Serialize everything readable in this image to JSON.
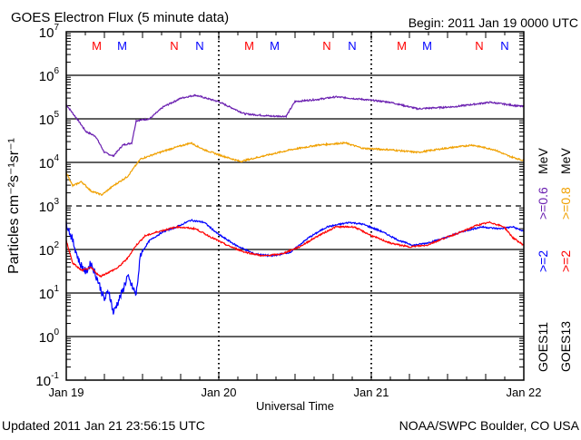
{
  "chart_data": {
    "type": "line",
    "title": "GOES Electron Flux (5 minute data)",
    "begin": "Begin: 2011 Jan 19 0000 UTC",
    "xlabel": "Universal Time",
    "ylabel": "Particles cm⁻²s⁻¹sr⁻¹",
    "yscale": "log",
    "ylim": [
      0.1,
      10000000
    ],
    "xlim_hours": [
      0,
      72
    ],
    "x_ticks": [
      {
        "hour": 0,
        "label": "Jan 19"
      },
      {
        "hour": 24,
        "label": "Jan 20"
      },
      {
        "hour": 48,
        "label": "Jan 21"
      },
      {
        "hour": 72,
        "label": "Jan 22"
      }
    ],
    "y_ticks": [
      {
        "exp": "7"
      },
      {
        "exp": "6"
      },
      {
        "exp": "5"
      },
      {
        "exp": "4"
      },
      {
        "exp": "3"
      },
      {
        "exp": "2"
      },
      {
        "exp": "1"
      },
      {
        "exp": "0"
      },
      {
        "exp": "-1"
      }
    ],
    "threshold_line": 1000,
    "markers": [
      {
        "hour": 4.8,
        "label": "M",
        "color": "#ff0000"
      },
      {
        "hour": 8.8,
        "label": "M",
        "color": "#0000ff"
      },
      {
        "hour": 17,
        "label": "N",
        "color": "#ff0000"
      },
      {
        "hour": 21,
        "label": "N",
        "color": "#0000ff"
      },
      {
        "hour": 28.8,
        "label": "M",
        "color": "#ff0000"
      },
      {
        "hour": 32.8,
        "label": "M",
        "color": "#0000ff"
      },
      {
        "hour": 41,
        "label": "N",
        "color": "#ff0000"
      },
      {
        "hour": 45,
        "label": "N",
        "color": "#0000ff"
      },
      {
        "hour": 52.8,
        "label": "M",
        "color": "#ff0000"
      },
      {
        "hour": 56.8,
        "label": "M",
        "color": "#0000ff"
      },
      {
        "hour": 65,
        "label": "N",
        "color": "#ff0000"
      },
      {
        "hour": 69,
        "label": "N",
        "color": "#0000ff"
      }
    ],
    "series": [
      {
        "name": "GOES11 >=0.6 MeV",
        "color": "#6a1fb0",
        "x": [
          0,
          1.7,
          3.1,
          4.6,
          6,
          7.4,
          8.9,
          10.3,
          11,
          13.1,
          15.3,
          18.1,
          20.3,
          23.9,
          28.1,
          32.4,
          34.6,
          36,
          39.6,
          42.4,
          46.7,
          51,
          55.3,
          61,
          66.7,
          72
        ],
        "y": [
          210000,
          100000,
          51000,
          40000,
          17000,
          14000,
          25000,
          28000,
          91000,
          100000,
          190000,
          300000,
          350000,
          250000,
          130000,
          115000,
          115000,
          250000,
          280000,
          320000,
          280000,
          240000,
          170000,
          190000,
          240000,
          190000
        ]
      },
      {
        "name": "GOES13 >=0.8 MeV",
        "color": "#f0a000",
        "x": [
          0,
          1,
          2.4,
          3.9,
          5.6,
          7.4,
          9.6,
          11.7,
          13.9,
          16.7,
          19.6,
          21.7,
          24.6,
          27.4,
          31,
          35.3,
          39.6,
          43.9,
          46.7,
          51,
          55.3,
          59.6,
          63.9,
          67.4,
          69.6,
          72
        ],
        "y": [
          5900,
          2900,
          3600,
          2200,
          1800,
          2900,
          4700,
          12000,
          15500,
          21000,
          28000,
          19500,
          14000,
          10500,
          14000,
          19500,
          25000,
          28000,
          21000,
          19500,
          17000,
          21000,
          25000,
          19500,
          14000,
          11000
        ]
      },
      {
        "name": "GOES11 >=2 MeV",
        "color": "#0000ff",
        "x": [
          0,
          1,
          2.1,
          3.1,
          3.9,
          5,
          6,
          6.7,
          7.4,
          8.9,
          9.6,
          11,
          11.7,
          13.1,
          15.3,
          17.4,
          19.6,
          21.7,
          23.9,
          26.7,
          29.6,
          32.4,
          35.3,
          38.1,
          41,
          44.6,
          46.7,
          49.6,
          52.4,
          54.6,
          56.7,
          59.6,
          62.4,
          65.3,
          68.1,
          70.3,
          72
        ],
        "y": [
          420,
          160,
          49,
          30,
          49,
          19,
          7,
          11.5,
          3.5,
          11.5,
          24,
          9,
          79,
          160,
          260,
          330,
          470,
          420,
          225,
          125,
          79,
          71,
          87,
          185,
          330,
          420,
          380,
          260,
          160,
          125,
          140,
          185,
          260,
          330,
          300,
          330,
          260
        ]
      },
      {
        "name": "GOES13 >=2 MeV",
        "color": "#ff0000",
        "x": [
          0,
          1,
          2.4,
          3.9,
          5.3,
          6.7,
          8.1,
          9.6,
          11,
          12.4,
          14.6,
          17.4,
          20.3,
          22.4,
          25.3,
          28.1,
          31,
          33.9,
          36.7,
          39.6,
          42.4,
          45.3,
          48.1,
          51,
          53.9,
          56.7,
          59.6,
          62.4,
          64.6,
          66.7,
          68.9,
          70.3,
          72
        ],
        "y": [
          160,
          49,
          33,
          38,
          24,
          30,
          38,
          62,
          125,
          205,
          260,
          330,
          300,
          205,
          125,
          87,
          71,
          79,
          115,
          205,
          330,
          330,
          205,
          140,
          115,
          125,
          185,
          260,
          360,
          420,
          330,
          185,
          125
        ]
      }
    ],
    "legend": {
      "col1": {
        "sat": "GOES11",
        "hi": ">=2",
        "lo": ">=0.6",
        "unit": "MeV"
      },
      "col2": {
        "sat": "GOES13",
        "hi": ">=2",
        "lo": ">=0.8",
        "unit": "MeV"
      }
    }
  },
  "footer": {
    "updated": "Updated 2011 Jan 21 23:56:15 UTC",
    "credit": "NOAA/SWPC Boulder, CO USA"
  }
}
